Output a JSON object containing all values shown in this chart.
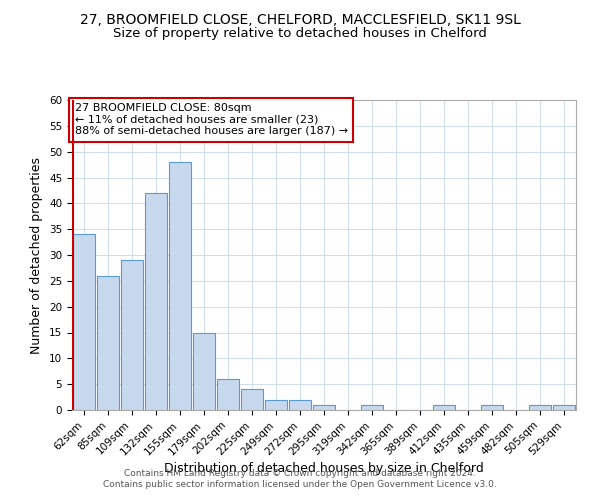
{
  "title": "27, BROOMFIELD CLOSE, CHELFORD, MACCLESFIELD, SK11 9SL",
  "subtitle": "Size of property relative to detached houses in Chelford",
  "xlabel": "Distribution of detached houses by size in Chelford",
  "ylabel": "Number of detached properties",
  "bar_labels": [
    "62sqm",
    "85sqm",
    "109sqm",
    "132sqm",
    "155sqm",
    "179sqm",
    "202sqm",
    "225sqm",
    "249sqm",
    "272sqm",
    "295sqm",
    "319sqm",
    "342sqm",
    "365sqm",
    "389sqm",
    "412sqm",
    "435sqm",
    "459sqm",
    "482sqm",
    "505sqm",
    "529sqm"
  ],
  "bar_heights": [
    34,
    26,
    29,
    42,
    48,
    15,
    6,
    4,
    2,
    2,
    1,
    0,
    1,
    0,
    0,
    1,
    0,
    1,
    0,
    1,
    1
  ],
  "bar_color": "#c9d9ed",
  "bar_edge_color": "#5b9bd5",
  "annotation_line1": "27 BROOMFIELD CLOSE: 80sqm",
  "annotation_line2": "← 11% of detached houses are smaller (23)",
  "annotation_line3": "88% of semi-detached houses are larger (187) →",
  "annotation_box_edge": "#cc0000",
  "vline_color": "#cc0000",
  "footer1": "Contains HM Land Registry data © Crown copyright and database right 2024.",
  "footer2": "Contains public sector information licensed under the Open Government Licence v3.0.",
  "ylim": [
    0,
    60
  ],
  "yticks": [
    0,
    5,
    10,
    15,
    20,
    25,
    30,
    35,
    40,
    45,
    50,
    55,
    60
  ],
  "title_fontsize": 10,
  "subtitle_fontsize": 9.5,
  "axis_label_fontsize": 9,
  "tick_fontsize": 7.5,
  "annotation_fontsize": 8,
  "footer_fontsize": 6.5
}
